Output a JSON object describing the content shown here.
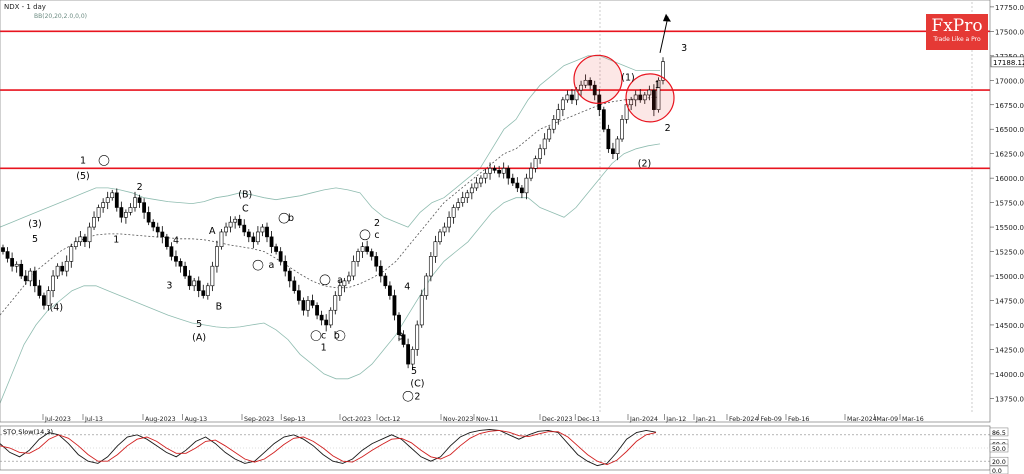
{
  "header": {
    "symbol": "NDX - 1 day",
    "indicator": "BB(20,20,2.0,0,0)"
  },
  "brand": {
    "name": "FxPro",
    "tagline": "Trade Like a Pro"
  },
  "colors": {
    "level": "#e8141f",
    "bollinger": "#8fbcb0",
    "ma": "#555555",
    "stoch_main": "#1a1a1a",
    "stoch_signal": "#d12020",
    "candle_bull": "#ffffff",
    "candle_bear": "#000000"
  },
  "chart_data": [
    {
      "type": "candlestick",
      "title": "NDX - 1 day",
      "ylim": [
        13600,
        17800
      ],
      "y_ticks": [
        "17750.00",
        "17500.00",
        "17250.00",
        "17000.00",
        "16750.00",
        "16500.00",
        "16250.00",
        "16000.00",
        "15750.00",
        "15500.00",
        "15250.00",
        "15000.00",
        "14750.00",
        "14500.00",
        "14250.00",
        "14000.00",
        "13750.00"
      ],
      "x_ticks": [
        "Jul-2023",
        "Jul-13",
        "Aug-2023",
        "Aug-13",
        "Sep-2023",
        "Sep-13",
        "Oct-2023",
        "Oct-12",
        "Nov-2023",
        "Nov-11",
        "Dec-2023",
        "Dec-13",
        "Jan-2024",
        "Jan-12",
        "Jan-21",
        "Feb-2024",
        "Feb-09",
        "Feb-16",
        "Mar-2024",
        "Mar-09",
        "Mar-16"
      ],
      "last_price": "17188.12",
      "closes": [
        15250,
        15180,
        15100,
        15120,
        15000,
        14950,
        15050,
        14900,
        14800,
        14700,
        14850,
        15000,
        15100,
        15050,
        15150,
        15300,
        15350,
        15400,
        15350,
        15500,
        15600,
        15700,
        15750,
        15800,
        15850,
        15700,
        15600,
        15650,
        15700,
        15800,
        15750,
        15650,
        15550,
        15500,
        15450,
        15400,
        15300,
        15200,
        15150,
        15100,
        15000,
        14900,
        14950,
        14850,
        14800,
        14900,
        15100,
        15300,
        15450,
        15500,
        15550,
        15580,
        15520,
        15450,
        15400,
        15350,
        15450,
        15500,
        15400,
        15300,
        15250,
        15150,
        15050,
        14950,
        14850,
        14750,
        14650,
        14750,
        14700,
        14600,
        14550,
        14500,
        14650,
        14800,
        14900,
        14950,
        15000,
        15150,
        15250,
        15300,
        15250,
        15200,
        15100,
        15000,
        14900,
        14800,
        14600,
        14400,
        14300,
        14100,
        14250,
        14500,
        14800,
        15000,
        15200,
        15350,
        15450,
        15500,
        15600,
        15700,
        15750,
        15800,
        15850,
        15900,
        15950,
        16000,
        16050,
        16100,
        16080,
        16050,
        16100,
        16000,
        15950,
        15900,
        15850,
        16000,
        16100,
        16200,
        16300,
        16400,
        16500,
        16600,
        16700,
        16800,
        16850,
        16800,
        16900,
        16950,
        17000,
        16950,
        16850,
        16700,
        16500,
        16300,
        16250,
        16400,
        16600,
        16750,
        16800,
        16850,
        16800,
        16850,
        16900,
        16700,
        17000,
        17190
      ],
      "bollinger_upper": [
        15500,
        15550,
        15600,
        15650,
        15700,
        15750,
        15800,
        15850,
        15900,
        15900,
        15880,
        15850,
        15800,
        15780,
        15760,
        15750,
        15740,
        15760,
        15800,
        15820,
        15850,
        15830,
        15800,
        15780,
        15800,
        15820,
        15850,
        15880,
        15900,
        15880,
        15850,
        15700,
        15600,
        15550,
        15500,
        15650,
        15750,
        15800,
        15900,
        16000,
        16100,
        16300,
        16500,
        16600,
        16800,
        16950,
        17050,
        17150,
        17200,
        17250,
        17250,
        17200,
        17150,
        17100,
        17100,
        17100
      ],
      "bollinger_lower": [
        13700,
        14000,
        14300,
        14500,
        14650,
        14750,
        14850,
        14900,
        14900,
        14850,
        14800,
        14750,
        14700,
        14650,
        14600,
        14560,
        14520,
        14500,
        14480,
        14470,
        14480,
        14500,
        14520,
        14450,
        14350,
        14200,
        14100,
        14000,
        13950,
        13950,
        14000,
        14100,
        14250,
        14400,
        14600,
        14800,
        15000,
        15150,
        15250,
        15350,
        15500,
        15650,
        15750,
        15800,
        15800,
        15700,
        15650,
        15600,
        15700,
        15850,
        16000,
        16150,
        16250,
        16300,
        16330,
        16350
      ],
      "moving_average": [
        14600,
        14750,
        14900,
        15050,
        15150,
        15250,
        15320,
        15380,
        15420,
        15430,
        15430,
        15420,
        15410,
        15400,
        15390,
        15380,
        15380,
        15370,
        15350,
        15320,
        15300,
        15280,
        15250,
        15180,
        15100,
        15020,
        14950,
        14900,
        14880,
        14880,
        14920,
        14980,
        15050,
        15150,
        15300,
        15450,
        15600,
        15750,
        15850,
        15950,
        16050,
        16150,
        16250,
        16300,
        16400,
        16500,
        16550,
        16600,
        16650,
        16700,
        16750,
        16780,
        16800,
        16810,
        16820,
        16830
      ],
      "horizontal_levels": [
        17500,
        16900,
        16100
      ],
      "wave_labels": [
        {
          "text": "(3)",
          "x": "Jun-26",
          "y": 15500
        },
        {
          "text": "5",
          "x": "Jun-26",
          "y": 15350
        },
        {
          "text": "(4)",
          "x": "Jul-05",
          "y": 14650
        },
        {
          "text": "1",
          "x": "Jul-13",
          "y": 16150
        },
        {
          "text": "(5)",
          "x": "Jul-13",
          "y": 15990
        },
        {
          "text": "2",
          "x": "Jul-30",
          "y": 15880
        },
        {
          "text": "1",
          "x": "Jul-23",
          "y": 15340
        },
        {
          "text": "4",
          "x": "Aug-11",
          "y": 15330
        },
        {
          "text": "3",
          "x": "Aug-09",
          "y": 14870
        },
        {
          "text": "A",
          "x": "Aug-22",
          "y": 15430
        },
        {
          "text": "B",
          "x": "Aug-24",
          "y": 14660
        },
        {
          "text": "5",
          "x": "Aug-18",
          "y": 14480
        },
        {
          "text": "(A)",
          "x": "Aug-18",
          "y": 14340
        },
        {
          "text": "(B)",
          "x": "Sep-02",
          "y": 15800
        },
        {
          "text": "C",
          "x": "Sep-02",
          "y": 15660
        },
        {
          "text": "b",
          "x": "Sep-16",
          "y": 15560
        },
        {
          "text": "a",
          "x": "Sep-10",
          "y": 15080
        },
        {
          "text": "2",
          "x": "Oct-12",
          "y": 15510
        },
        {
          "text": "c",
          "x": "Oct-12",
          "y": 15390
        },
        {
          "text": "a",
          "x": "Oct-01",
          "y": 14930
        },
        {
          "text": "4",
          "x": "Oct-21",
          "y": 14860
        },
        {
          "text": "c",
          "x": "Sep-26",
          "y": 14360
        },
        {
          "text": "b",
          "x": "Sep-30",
          "y": 14360
        },
        {
          "text": "1",
          "x": "Sep-26",
          "y": 14240
        },
        {
          "text": "3",
          "x": "Oct-19",
          "y": 14350
        },
        {
          "text": "5",
          "x": "Oct-23",
          "y": 14000
        },
        {
          "text": "(C)",
          "x": "Oct-24",
          "y": 13870
        },
        {
          "text": "2",
          "x": "Oct-24",
          "y": 13740
        },
        {
          "text": "(1)",
          "x": "Jan-01",
          "y": 17000
        },
        {
          "text": "(2)",
          "x": "Jan-06",
          "y": 16120
        },
        {
          "text": "1",
          "x": "Jan-10",
          "y": 16920
        },
        {
          "text": "2",
          "x": "Jan-13",
          "y": 16480
        },
        {
          "text": "3",
          "x": "Jan-18",
          "y": 17300
        }
      ],
      "circled_labels": [
        "1",
        "b",
        "a",
        "a",
        "c",
        "b",
        "c",
        "2",
        "2"
      ]
    },
    {
      "type": "line",
      "title": "STO Slow(14,3)",
      "ylim": [
        0,
        100
      ],
      "y_ticks": [
        "86.5",
        "60.0",
        "50.0",
        "20.0",
        "0.0"
      ],
      "series": [
        {
          "name": "main",
          "values": [
            60,
            40,
            30,
            45,
            70,
            85,
            80,
            60,
            35,
            20,
            15,
            30,
            55,
            75,
            80,
            70,
            55,
            40,
            30,
            45,
            65,
            75,
            60,
            40,
            25,
            15,
            20,
            40,
            60,
            75,
            80,
            70,
            55,
            35,
            20,
            15,
            25,
            45,
            60,
            70,
            80,
            70,
            50,
            30,
            20,
            30,
            55,
            75,
            85,
            90,
            92,
            90,
            80,
            70,
            80,
            88,
            90,
            85,
            60,
            35,
            20,
            10,
            15,
            40,
            70,
            85,
            90,
            86
          ]
        },
        {
          "name": "signal",
          "values": [
            55,
            50,
            40,
            38,
            50,
            70,
            80,
            72,
            55,
            35,
            20,
            20,
            35,
            55,
            70,
            75,
            65,
            50,
            38,
            38,
            50,
            65,
            68,
            55,
            40,
            25,
            18,
            25,
            40,
            58,
            72,
            75,
            65,
            50,
            32,
            20,
            18,
            30,
            45,
            58,
            70,
            72,
            62,
            45,
            30,
            25,
            35,
            55,
            72,
            83,
            88,
            90,
            86,
            78,
            76,
            82,
            87,
            87,
            75,
            55,
            35,
            20,
            12,
            22,
            42,
            65,
            80,
            85
          ]
        }
      ]
    }
  ]
}
